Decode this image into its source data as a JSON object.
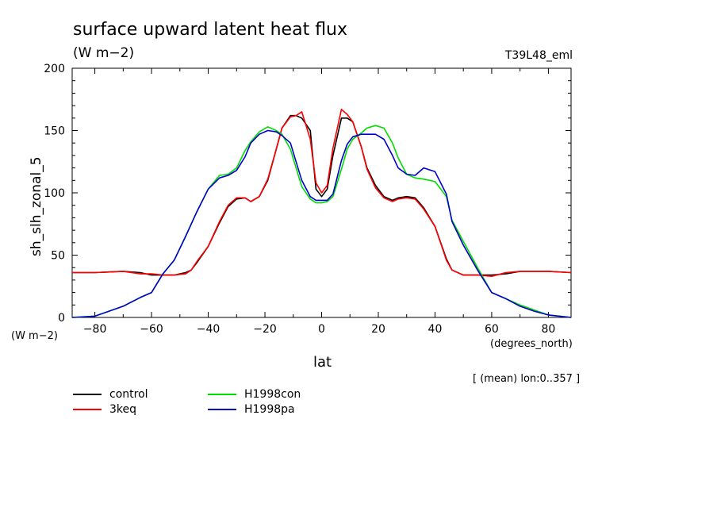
{
  "header": {
    "title": "surface upward latent heat flux",
    "units": "(W m−2)",
    "run_id": "T39L48_eml"
  },
  "axes": {
    "yunits_label": "(W m−2)",
    "xunits_label": "(degrees_north)",
    "footnote": "[ (mean) lon:0..357 ]"
  },
  "legend": {
    "items": [
      {
        "label": "control",
        "color": "#000000"
      },
      {
        "label": "3keq",
        "color": "#ff0000"
      },
      {
        "label": "H1998con",
        "color": "#00dd00"
      },
      {
        "label": "H1998pa",
        "color": "#0000cc"
      }
    ]
  },
  "chart_data": {
    "type": "line",
    "title": "surface upward latent heat flux",
    "xlabel": "lat",
    "ylabel": "sh_slh_zonal_5",
    "xlim": [
      -88,
      88
    ],
    "ylim": [
      0,
      200
    ],
    "xticks": [
      -80,
      -60,
      -40,
      -20,
      0,
      20,
      40,
      60,
      80
    ],
    "yticks": [
      0,
      50,
      100,
      150,
      200
    ],
    "grid": false,
    "legend_position": "bottom-left",
    "x": [
      -88,
      -80,
      -70,
      -64,
      -60,
      -56,
      -52,
      -48,
      -46,
      -44,
      -40,
      -36,
      -33,
      -30,
      -27,
      -25,
      -22,
      -19,
      -16,
      -14,
      -11,
      -9,
      -7,
      -4,
      -2,
      0,
      2,
      4,
      7,
      9,
      11,
      14,
      16,
      19,
      22,
      25,
      27,
      30,
      33,
      36,
      40,
      44,
      46,
      50,
      55,
      60,
      65,
      70,
      75,
      80,
      88
    ],
    "series": [
      {
        "name": "control",
        "color": "#000000",
        "values": [
          36,
          36,
          37,
          36,
          34,
          34,
          34,
          36,
          38,
          44,
          57,
          76,
          89,
          95,
          96,
          93,
          97,
          110,
          135,
          152,
          162,
          162,
          160,
          150,
          103,
          97,
          103,
          130,
          160,
          160,
          157,
          137,
          120,
          106,
          97,
          94,
          96,
          97,
          96,
          88,
          73,
          47,
          38,
          34,
          34,
          34,
          35,
          37,
          37,
          37,
          36
        ]
      },
      {
        "name": "3keq",
        "color": "#ff0000",
        "values": [
          36,
          36,
          37,
          35,
          35,
          34,
          34,
          35,
          38,
          45,
          57,
          77,
          90,
          96,
          96,
          93,
          97,
          111,
          135,
          152,
          161,
          162,
          165,
          143,
          108,
          100,
          106,
          136,
          167,
          163,
          157,
          137,
          119,
          104,
          96,
          93,
          95,
          96,
          95,
          87,
          73,
          46,
          38,
          34,
          34,
          33,
          36,
          37,
          37,
          37,
          36
        ]
      },
      {
        "name": "H1998con",
        "color": "#00dd00",
        "values": [
          0,
          1,
          9,
          16,
          20,
          35,
          46,
          65,
          75,
          85,
          103,
          114,
          115,
          120,
          134,
          141,
          149,
          153,
          150,
          147,
          135,
          120,
          105,
          95,
          92,
          92,
          93,
          97,
          119,
          135,
          143,
          148,
          152,
          154,
          152,
          140,
          128,
          115,
          112,
          111,
          109,
          97,
          78,
          61,
          40,
          20,
          15,
          10,
          6,
          2,
          0
        ]
      },
      {
        "name": "H1998pa",
        "color": "#0000cc",
        "values": [
          0,
          1,
          9,
          16,
          20,
          35,
          46,
          65,
          75,
          85,
          103,
          112,
          114,
          118,
          129,
          140,
          147,
          150,
          149,
          146,
          140,
          125,
          110,
          97,
          94,
          94,
          94,
          99,
          126,
          139,
          145,
          147,
          147,
          147,
          143,
          130,
          120,
          115,
          114,
          120,
          117,
          99,
          77,
          58,
          38,
          20,
          15,
          9,
          5,
          2,
          0
        ]
      }
    ]
  }
}
